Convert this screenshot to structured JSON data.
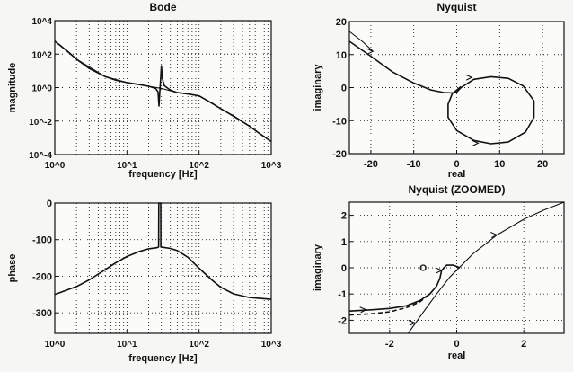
{
  "chart_data": [
    {
      "id": "bode-magnitude",
      "type": "line",
      "title": "Bode",
      "xlabel": "frequency [Hz]",
      "ylabel": "magnitude",
      "xscale": "log",
      "yscale": "log",
      "xlim": [
        1,
        1000
      ],
      "ylim": [
        0.0001,
        10000
      ],
      "xticks": [
        1,
        10,
        100,
        1000
      ],
      "xtick_labels": [
        "10^0",
        "10^1",
        "10^2",
        "10^3"
      ],
      "yticks": [
        0.0001,
        0.01,
        1,
        100,
        10000
      ],
      "ytick_labels": [
        "10^-4",
        "10^-2",
        "10^0",
        "10^2",
        "10^4"
      ],
      "grid": true,
      "series": [
        {
          "x": [
            1,
            1.5,
            2,
            3,
            5,
            7,
            10,
            15,
            20,
            25,
            27,
            27.8,
            28.5,
            29.3,
            30,
            31,
            33,
            40,
            50,
            70,
            100,
            150,
            200,
            300,
            500,
            700,
            1000
          ],
          "y": [
            600,
            150,
            50,
            14,
            4.5,
            2.8,
            2,
            1.5,
            1.2,
            0.9,
            0.55,
            0.08,
            0.5,
            3,
            20,
            3.5,
            1.3,
            0.7,
            0.5,
            0.42,
            0.32,
            0.12,
            0.055,
            0.02,
            0.005,
            0.0017,
            0.0006
          ]
        },
        {
          "x": [
            1,
            2,
            5,
            10,
            20,
            30,
            50,
            100,
            200,
            500,
            1000
          ],
          "y": [
            600,
            50,
            4.5,
            2,
            1.2,
            0.9,
            0.5,
            0.32,
            0.055,
            0.005,
            0.0006
          ]
        }
      ]
    },
    {
      "id": "bode-phase",
      "type": "line",
      "xlabel": "frequency [Hz]",
      "ylabel": "phase",
      "xscale": "log",
      "xlim": [
        1,
        1000
      ],
      "ylim": [
        -356,
        0
      ],
      "xticks": [
        1,
        10,
        100,
        1000
      ],
      "xtick_labels": [
        "10^0",
        "10^1",
        "10^2",
        "10^3"
      ],
      "yticks": [
        -300,
        -200,
        -100,
        0
      ],
      "ytick_labels": [
        "-300",
        "-200",
        "-100",
        "0"
      ],
      "grid": true,
      "series": [
        {
          "x": [
            1,
            2,
            3,
            5,
            7,
            10,
            15,
            20,
            26,
            27.5,
            27.6,
            29.4,
            29.5,
            32,
            40,
            50,
            70,
            100,
            150,
            200,
            300,
            500,
            1000
          ],
          "y": [
            -250,
            -228,
            -210,
            -182,
            -163,
            -146,
            -132,
            -125,
            -122,
            -120,
            0,
            0,
            -120,
            -121,
            -124,
            -130,
            -148,
            -178,
            -210,
            -230,
            -248,
            -258,
            -263
          ]
        }
      ]
    },
    {
      "id": "nyquist",
      "type": "line",
      "title": "Nyquist",
      "xlabel": "real",
      "ylabel": "imaginary",
      "xlim": [
        -25,
        25
      ],
      "ylim": [
        -20,
        20
      ],
      "xticks": [
        -20,
        -10,
        0,
        10,
        20
      ],
      "xtick_labels": [
        "-20",
        "-10",
        "0",
        "10",
        "20"
      ],
      "yticks": [
        -20,
        -10,
        0,
        10,
        20
      ],
      "ytick_labels": [
        "-20",
        "-10",
        "0",
        "10",
        "20"
      ],
      "grid": true,
      "series": [
        {
          "x": [
            -25,
            -20,
            -15,
            -10,
            -6,
            -3,
            -1,
            0,
            1,
            4,
            8,
            12,
            15.5,
            18,
            18,
            16,
            12,
            8,
            4,
            0,
            -2,
            -2,
            -1,
            1
          ],
          "y": [
            14,
            9.5,
            4.8,
            1.4,
            -0.7,
            -1.5,
            -1.6,
            -1.4,
            0,
            2.5,
            3.3,
            2.8,
            0.5,
            -4,
            -9,
            -13.5,
            -16.5,
            -17,
            -16,
            -13,
            -9,
            -5,
            -1.8,
            0.3
          ]
        },
        {
          "x": [
            -25,
            -22,
            -19.5
          ],
          "y": [
            17,
            14,
            11
          ]
        }
      ],
      "arrows": [
        {
          "x": -19.5,
          "y": 11
        },
        {
          "x": 3.5,
          "y": 3.1
        },
        {
          "x": 5,
          "y": -16.8
        }
      ]
    },
    {
      "id": "nyquist-zoomed",
      "type": "line",
      "title": "Nyquist (ZOOMED)",
      "xlabel": "real",
      "ylabel": "imaginary",
      "xlim": [
        -3.2,
        3.2
      ],
      "ylim": [
        -2.5,
        2.5
      ],
      "xticks": [
        -2,
        0,
        2
      ],
      "xtick_labels": [
        "-2",
        "0",
        "2"
      ],
      "yticks": [
        -2,
        -1,
        0,
        1,
        2
      ],
      "ytick_labels": [
        "-2",
        "-1",
        "0",
        "1",
        "2"
      ],
      "grid": true,
      "series": [
        {
          "x": [
            -3.2,
            -2.5,
            -2,
            -1.5,
            -1.1,
            -0.8,
            -0.6,
            -0.5,
            -0.45,
            -0.3,
            -0.1,
            0.1
          ],
          "y": [
            -1.65,
            -1.6,
            -1.55,
            -1.45,
            -1.25,
            -1.0,
            -0.7,
            -0.4,
            -0.1,
            0.1,
            0.1,
            0
          ]
        },
        {
          "x": [
            -3.2,
            -2.5,
            -2,
            -1.5,
            -1.1,
            -0.8
          ],
          "y": [
            -1.8,
            -1.75,
            -1.68,
            -1.52,
            -1.3,
            -1.0
          ],
          "style": "dashed"
        },
        {
          "x": [
            -1.45,
            -1.0,
            -0.6,
            -0.2,
            0.5,
            1.2,
            2.0,
            2.6,
            3.2
          ],
          "y": [
            -2.5,
            -1.7,
            -1.0,
            -0.35,
            0.55,
            1.25,
            1.85,
            2.2,
            2.5
          ]
        }
      ],
      "arrows": [
        {
          "x": -2.7,
          "y": -1.6
        },
        {
          "x": -1.25,
          "y": -2.1
        },
        {
          "x": -0.45,
          "y": -0.1
        },
        {
          "x": 1.2,
          "y": 1.25
        }
      ],
      "markers": [
        {
          "x": -1,
          "y": 0,
          "symbol": "o"
        }
      ]
    }
  ]
}
